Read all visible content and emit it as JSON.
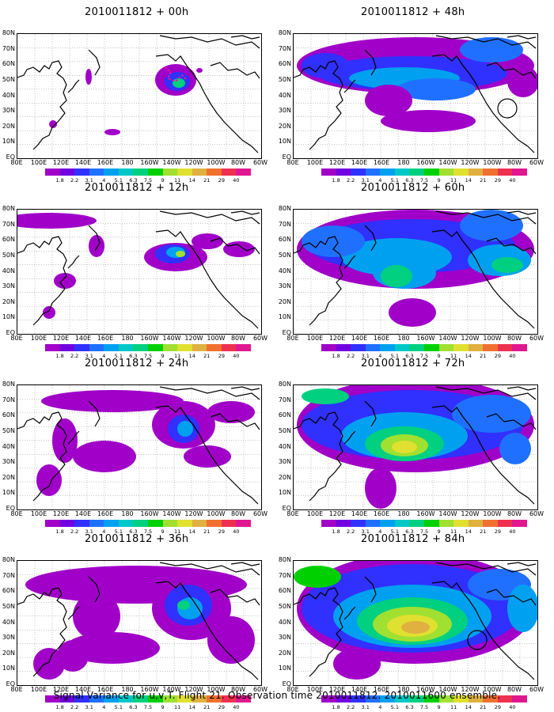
{
  "footer": "Signal Variance for u,v,T. Flight 21. Observation time 2010011812. 2010011600 ensemble.",
  "lat_labels": [
    "80N",
    "70N",
    "60N",
    "50N",
    "40N",
    "30N",
    "20N",
    "10N",
    "EQ"
  ],
  "lon_labels": [
    "80E",
    "100E",
    "120E",
    "140E",
    "160E",
    "180",
    "160W",
    "140W",
    "120W",
    "100W",
    "80W",
    "60W"
  ],
  "colorbar": {
    "labels": [
      "1.8",
      "2.2",
      "3.1",
      "4",
      "5.1",
      "6.3",
      "7.5",
      "9",
      "11",
      "14",
      "21",
      "29",
      "40"
    ],
    "colors": [
      "#a000c8",
      "#7000e0",
      "#3030ff",
      "#2070ff",
      "#00a0f0",
      "#00c8c8",
      "#00d080",
      "#00d000",
      "#a0e030",
      "#e0e030",
      "#e0b040",
      "#f07030",
      "#f03050",
      "#e01890"
    ]
  },
  "panels": [
    {
      "title": "2010011812 + 00h",
      "level": 0
    },
    {
      "title": "2010011812 + 48h",
      "level": 4
    },
    {
      "title": "2010011812 + 12h",
      "level": 1
    },
    {
      "title": "2010011812 + 60h",
      "level": 5
    },
    {
      "title": "2010011812 + 24h",
      "level": 2
    },
    {
      "title": "2010011812 + 72h",
      "level": 6
    },
    {
      "title": "2010011812 + 36h",
      "level": 3
    },
    {
      "title": "2010011812 + 84h",
      "level": 7
    }
  ]
}
